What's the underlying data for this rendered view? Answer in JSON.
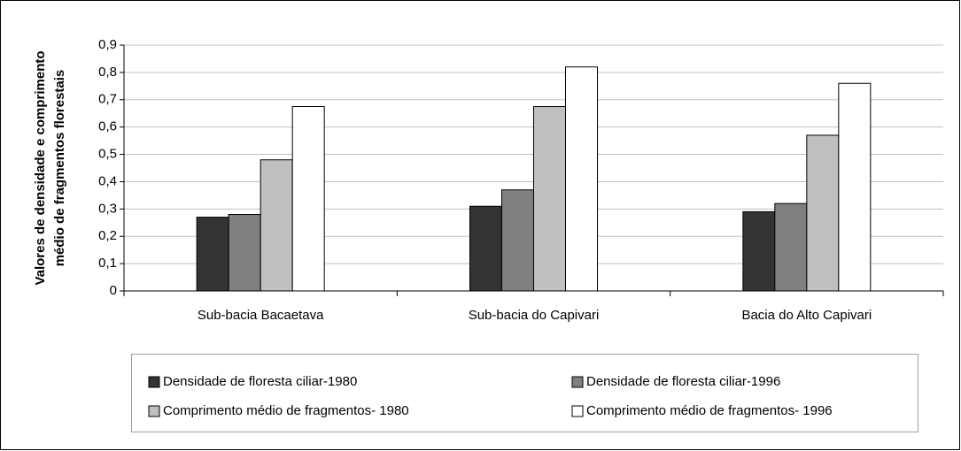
{
  "chart_data": {
    "type": "bar",
    "ylabel": [
      "Valores de densidade e comprimento",
      "médio de fragmentos florestais"
    ],
    "categories": [
      "Sub-bacia  Bacaetava",
      "Sub-bacia do Capivari",
      "Bacia do Alto Capivari"
    ],
    "series": [
      {
        "name": "Densidade de floresta ciliar-1980",
        "color": "#333333",
        "values": [
          0.27,
          0.31,
          0.29
        ]
      },
      {
        "name": "Densidade de floresta ciliar-1996",
        "color": "#808080",
        "values": [
          0.28,
          0.37,
          0.32
        ]
      },
      {
        "name": "Comprimento médio de fragmentos- 1980",
        "color": "#c0c0c0",
        "values": [
          0.48,
          0.675,
          0.57
        ]
      },
      {
        "name": "Comprimento médio de fragmentos- 1996",
        "color": "#ffffff",
        "values": [
          0.675,
          0.82,
          0.76
        ]
      }
    ],
    "ylim": [
      0,
      0.9
    ],
    "yticks": [
      0,
      {
        "value": 0.1,
        "label": "0,1"
      },
      {
        "value": 0.2,
        "label": "0,2"
      },
      {
        "value": 0.3,
        "label": "0,3"
      },
      {
        "value": 0.4,
        "label": "0,4"
      },
      {
        "value": 0.5,
        "label": "0,5"
      },
      {
        "value": 0.6,
        "label": "0,6"
      },
      {
        "value": 0.7,
        "label": "0,7"
      },
      {
        "value": 0.8,
        "label": "0,8"
      },
      {
        "value": 0.9,
        "label": "0,9"
      }
    ],
    "grid": true,
    "legend": "bottom"
  }
}
